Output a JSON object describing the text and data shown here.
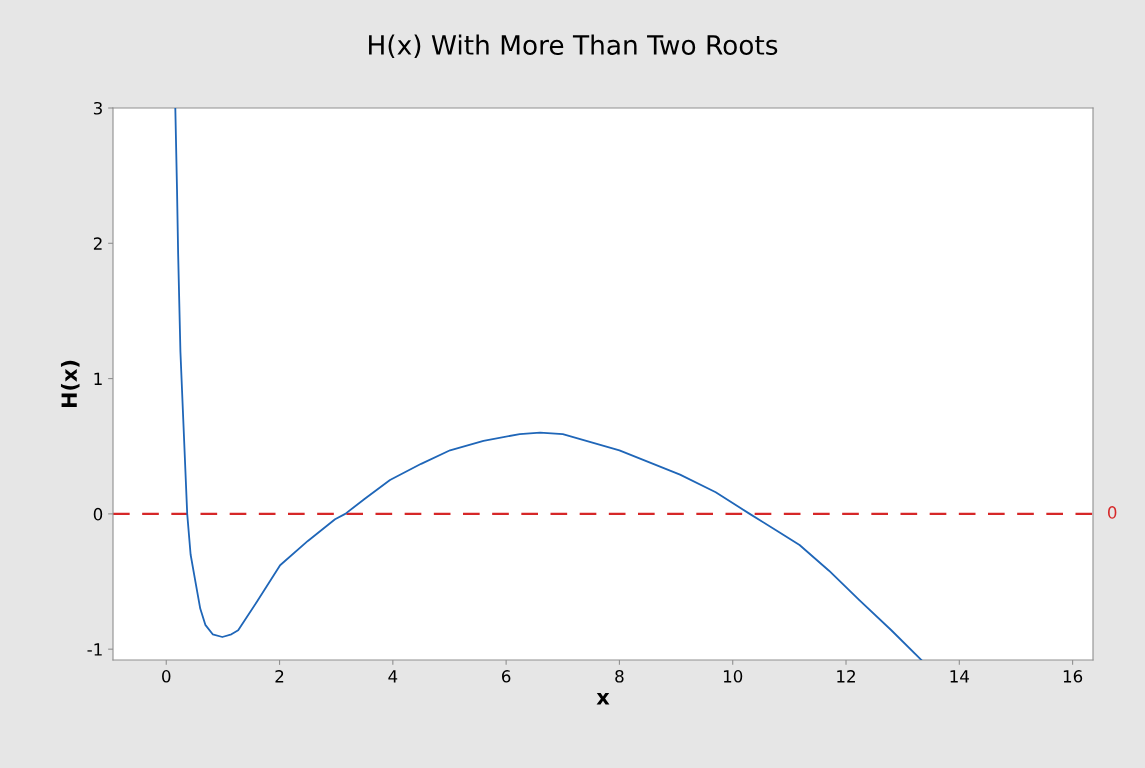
{
  "chart_data": {
    "type": "line",
    "title": "H(x) With More Than Two Roots",
    "xlabel": "x",
    "ylabel": "H(x)",
    "x": [
      0.16,
      0.19,
      0.21,
      0.25,
      0.3,
      0.37,
      0.43,
      0.51,
      0.6,
      0.69,
      0.82,
      0.99,
      1.15,
      1.27,
      1.6,
      2.01,
      2.5,
      2.98,
      3.16,
      3.5,
      3.95,
      4.5,
      5.01,
      5.6,
      6.24,
      6.6,
      7.0,
      8.0,
      9.07,
      9.7,
      10.3,
      10.8,
      11.18,
      11.7,
      12.24,
      12.8,
      13.33
    ],
    "series": [
      {
        "color": "#1f66b8",
        "values": [
          3.0,
          2.4,
          1.92,
          1.2,
          0.7,
          0.0,
          -0.3,
          -0.49,
          -0.7,
          -0.82,
          -0.89,
          -0.91,
          -0.89,
          -0.86,
          -0.65,
          -0.38,
          -0.2,
          -0.04,
          0.0,
          0.11,
          0.25,
          0.37,
          0.47,
          0.54,
          0.59,
          0.6,
          0.59,
          0.47,
          0.29,
          0.16,
          0.0,
          -0.13,
          -0.23,
          -0.42,
          -0.64,
          -0.86,
          -1.08
        ]
      }
    ],
    "xlim": [
      -0.94,
      16.36
    ],
    "ylim": [
      -1.08,
      3
    ],
    "xticks": [
      0,
      2,
      4,
      6,
      8,
      10,
      12,
      14,
      16
    ],
    "yticks": [
      -1,
      0,
      1,
      2,
      3
    ],
    "ref_lines": [
      {
        "axis": "y",
        "value": 0,
        "label": "0",
        "color": "#d62728",
        "line_style": "dashed"
      }
    ],
    "grid": false,
    "marker": "none",
    "line_style": "solid"
  }
}
